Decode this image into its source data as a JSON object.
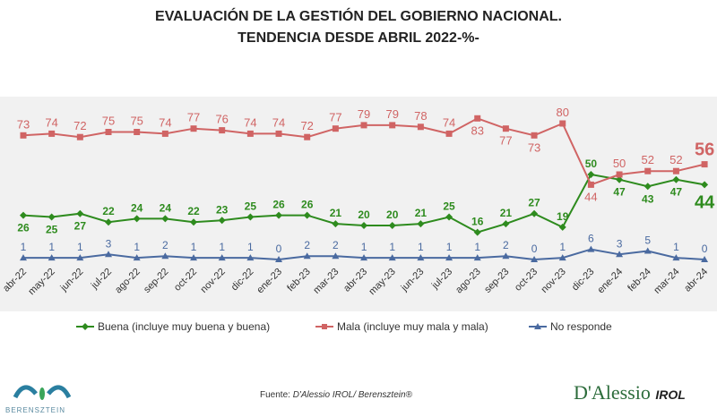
{
  "chart_data": {
    "type": "line",
    "title": "EVALUACIÓN DE LA GESTIÓN DEL GOBIERNO NACIONAL.",
    "subtitle": "TENDENCIA DESDE  ABRIL 2022-%-",
    "categories": [
      "abr-22",
      "may-22",
      "jun-22",
      "jul-22",
      "ago-22",
      "sep-22",
      "oct-22",
      "nov-22",
      "dic-22",
      "ene-23",
      "feb-23",
      "mar-23",
      "abr-23",
      "may-23",
      "jun-23",
      "jul-23",
      "ago-23",
      "sep-23",
      "oct-23",
      "nov-23",
      "dic-23",
      "ene-24",
      "feb-24",
      "mar-24",
      "abr-24"
    ],
    "series": [
      {
        "name": "Buena (incluye muy buena y buena)",
        "color": "#2e8b1e",
        "marker": "diamond",
        "values": [
          26,
          25,
          27,
          22,
          24,
          24,
          22,
          23,
          25,
          26,
          26,
          21,
          20,
          20,
          21,
          25,
          16,
          21,
          27,
          19,
          50,
          47,
          43,
          47,
          44
        ]
      },
      {
        "name": "Mala (incluye muy mala y mala)",
        "color": "#d06464",
        "marker": "square",
        "values": [
          73,
          74,
          72,
          75,
          75,
          74,
          77,
          76,
          74,
          74,
          72,
          77,
          79,
          79,
          78,
          74,
          83,
          77,
          73,
          80,
          44,
          50,
          52,
          52,
          56
        ]
      },
      {
        "name": "No responde",
        "color": "#4a6aa0",
        "marker": "triangle",
        "values": [
          1,
          1,
          1,
          3,
          1,
          2,
          1,
          1,
          1,
          0,
          2,
          2,
          1,
          1,
          1,
          1,
          1,
          2,
          0,
          1,
          6,
          3,
          5,
          1,
          0
        ]
      }
    ],
    "legend_position": "bottom",
    "grid": false,
    "data_labels": true
  },
  "footer": {
    "source_prefix": "Fuente: ",
    "source": "D'Alessio IROL/ Berensztein®",
    "logo_left": "BERENSZTEIN",
    "logo_right_main": "D'Alessio",
    "logo_right_sub": "IROL"
  }
}
